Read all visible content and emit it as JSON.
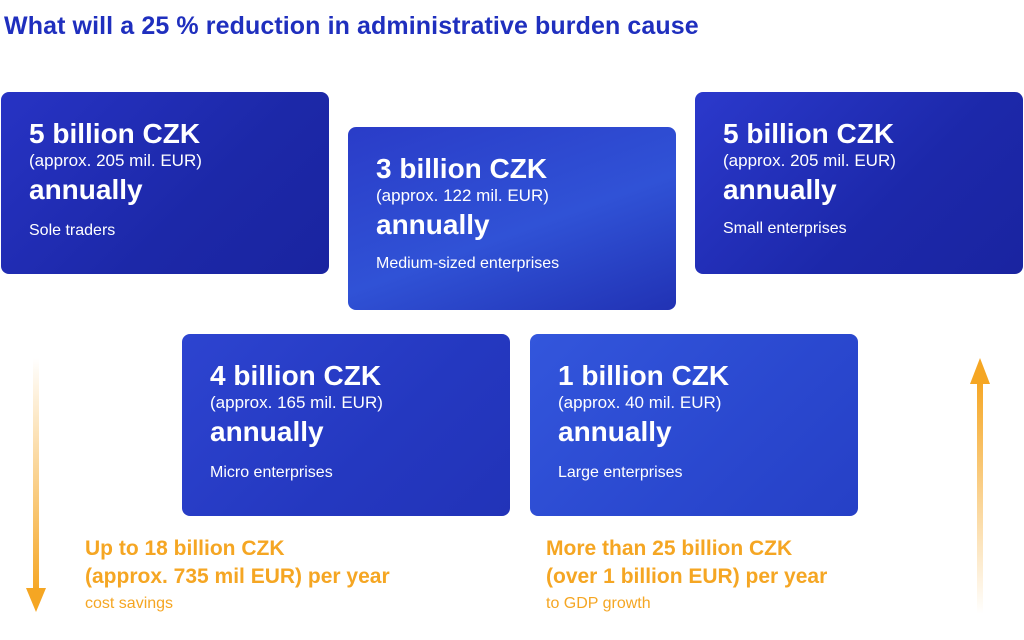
{
  "title": "What will a 25 % reduction in administrative burden cause",
  "cards": [
    {
      "amount": "5 billion CZK",
      "approx": "(approx. 205 mil. EUR)",
      "annual": "annually",
      "segment": "Sole traders"
    },
    {
      "amount": "3 billion CZK",
      "approx": "(approx. 122 mil. EUR)",
      "annual": "annually",
      "segment": "Medium-sized enterprises"
    },
    {
      "amount": "5 billion CZK",
      "approx": "(approx. 205 mil. EUR)",
      "annual": "annually",
      "segment": "Small enterprises"
    },
    {
      "amount": "4 billion CZK",
      "approx": "(approx. 165 mil. EUR)",
      "annual": "annually",
      "segment": "Micro enterprises"
    },
    {
      "amount": "1 billion CZK",
      "approx": "(approx. 40 mil. EUR)",
      "annual": "annually",
      "segment": "Large enterprises"
    }
  ],
  "savings": {
    "line1": "Up to 18 billion CZK",
    "line2": "(approx. 735 mil EUR) per year",
    "caption": "cost savings"
  },
  "growth": {
    "line1": "More than 25 billion CZK",
    "line2": "(over 1 billion EUR) per year",
    "caption": "to GDP growth"
  },
  "colors": {
    "title": "#1f2fbe",
    "card": "#2433c0",
    "accent": "#f5a623"
  },
  "icons": {
    "left_arrow": "arrow-down-icon",
    "right_arrow": "arrow-up-icon"
  }
}
